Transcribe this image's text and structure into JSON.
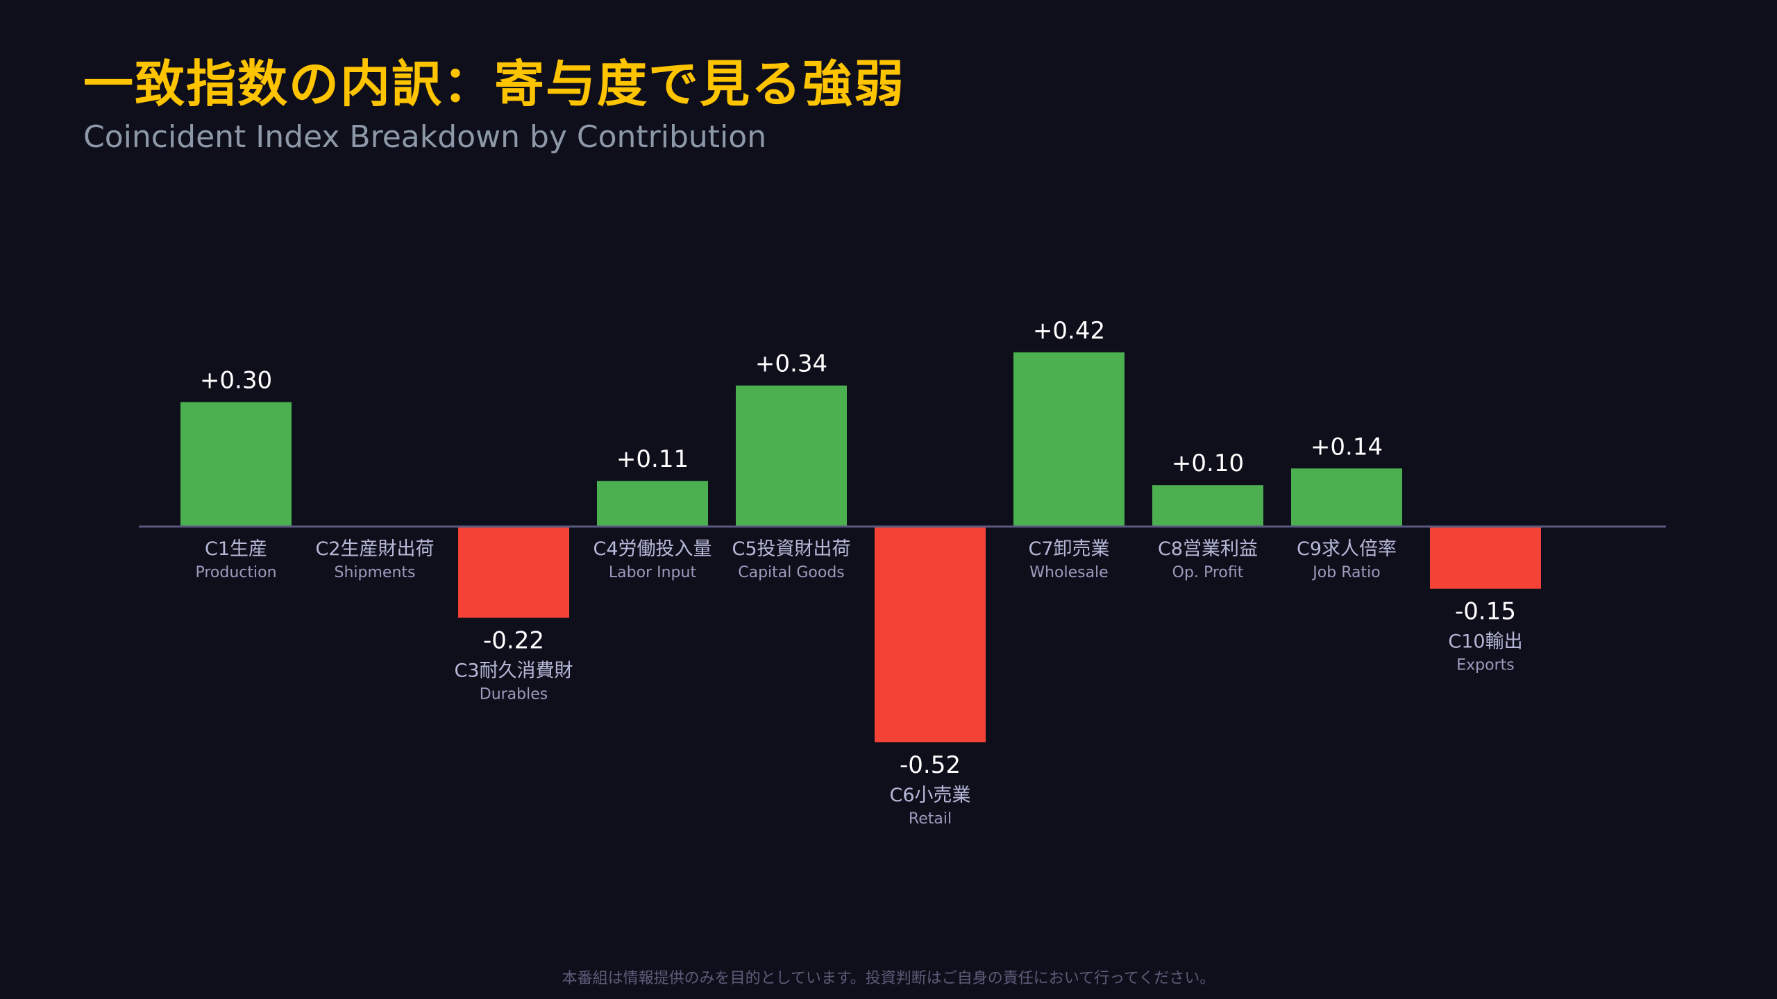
{
  "header": {
    "title": "一致指数の内訳：寄与度で見る強弱",
    "subtitle": "Coincident Index Breakdown by Contribution"
  },
  "footer": {
    "disclaimer": "本番組は情報提供のみを目的としています。投資判断はご自身の責任において行ってください。"
  },
  "colors": {
    "background": "#0f0f1c",
    "title": "#ffc400",
    "positive": "#4caf50",
    "negative": "#f44336",
    "axis": "#5a5a80"
  },
  "chart_data": {
    "type": "bar",
    "title": "一致指数の内訳：寄与度で見る強弱",
    "subtitle": "Coincident Index Breakdown by Contribution",
    "categories": [
      "C1生産",
      "C2生産財出荷",
      "C3耐久消費財",
      "C4労働投入量",
      "C5投資財出荷",
      "C6小売業",
      "C7卸売業",
      "C8営業利益",
      "C9求人倍率",
      "C10輸出"
    ],
    "categories_en": [
      "Production",
      "Shipments",
      "Durables",
      "Labor Input",
      "Capital Goods",
      "Retail",
      "Wholesale",
      "Op. Profit",
      "Job Ratio",
      "Exports"
    ],
    "values": [
      0.3,
      null,
      -0.22,
      0.11,
      0.34,
      -0.52,
      0.42,
      0.1,
      0.14,
      -0.15
    ],
    "value_labels": [
      "+0.30",
      "",
      "-0.22",
      "+0.11",
      "+0.34",
      "-0.52",
      "+0.42",
      "+0.10",
      "+0.14",
      "-0.15"
    ],
    "xlabel": "",
    "ylabel": "",
    "grid": false,
    "legend": "none"
  }
}
